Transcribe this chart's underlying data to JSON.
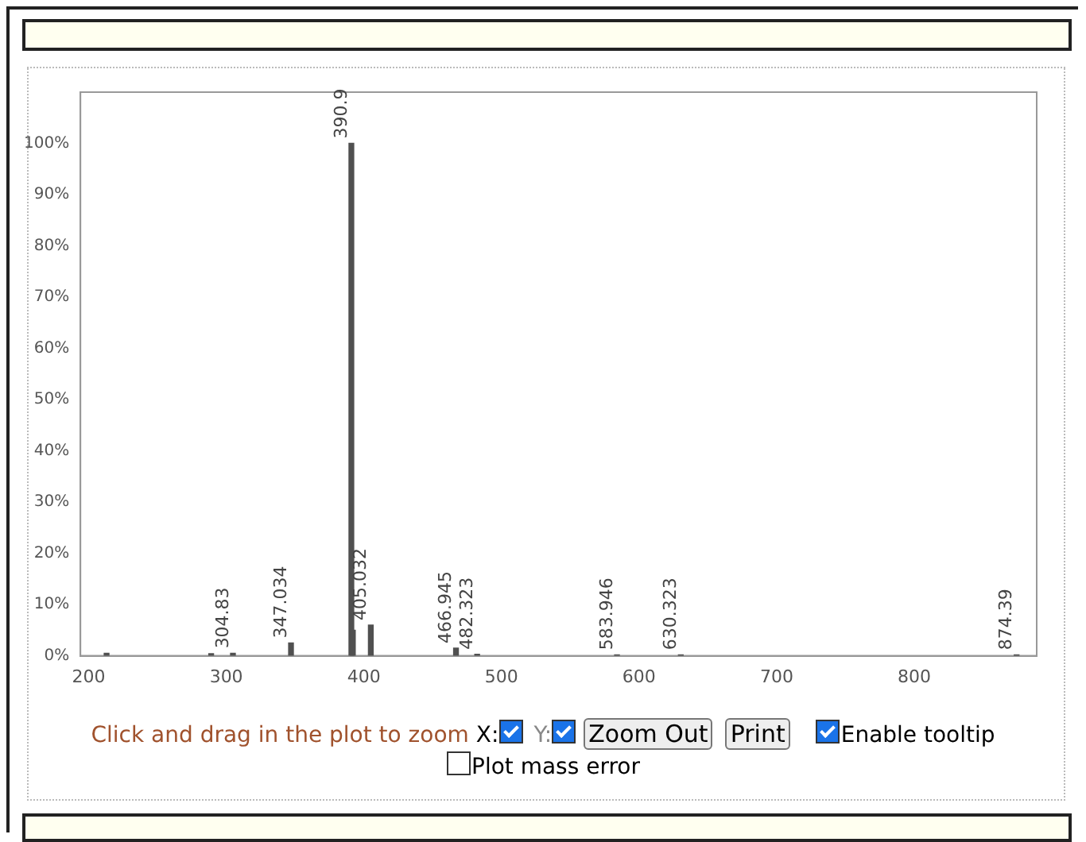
{
  "chart_data": {
    "type": "bar",
    "color": "#505050",
    "x": [
      213,
      289,
      304.83,
      347.034,
      390.9,
      392,
      405.032,
      466.945,
      482.323,
      583.946,
      630.323,
      874.39
    ],
    "values": [
      0.5,
      0.4,
      0.5,
      2.5,
      100,
      5,
      6,
      1.5,
      0.3,
      0.2,
      0.2,
      0.2
    ],
    "xlim": [
      194,
      889
    ],
    "xticks": [
      200,
      300,
      400,
      500,
      600,
      700,
      800
    ],
    "ylim": [
      0,
      110
    ],
    "yticks": [
      {
        "value": 0,
        "label": "0%"
      },
      {
        "value": 10,
        "label": "10%"
      },
      {
        "value": 20,
        "label": "20%"
      },
      {
        "value": 30,
        "label": "30%"
      },
      {
        "value": 40,
        "label": "40%"
      },
      {
        "value": 50,
        "label": "50%"
      },
      {
        "value": 60,
        "label": "60%"
      },
      {
        "value": 70,
        "label": "70%"
      },
      {
        "value": 80,
        "label": "80%"
      },
      {
        "value": 90,
        "label": "90%"
      },
      {
        "value": 100,
        "label": "100%"
      }
    ],
    "grid": false,
    "legend": false,
    "annotations": [
      {
        "text": "304.83",
        "x": 304.83,
        "y": 0.5
      },
      {
        "text": "347.034",
        "x": 347.034,
        "y": 2.5
      },
      {
        "text": "390.9",
        "x": 390.9,
        "y": 100
      },
      {
        "text": "405.032",
        "x": 405.032,
        "y": 6
      },
      {
        "text": "466.945",
        "x": 466.945,
        "y": 1.5
      },
      {
        "text": "482.323",
        "x": 482.323,
        "y": 0.3
      },
      {
        "text": "583.946",
        "x": 583.946,
        "y": 0.2
      },
      {
        "text": "630.323",
        "x": 630.323,
        "y": 0.2
      },
      {
        "text": "874.39",
        "x": 874.39,
        "y": 0.2
      },
      "Click and drag in the plot to zoom",
      "X:",
      "Y:",
      "Zoom Out",
      "Print",
      "Enable tooltip",
      "Plot mass error"
    ]
  }
}
